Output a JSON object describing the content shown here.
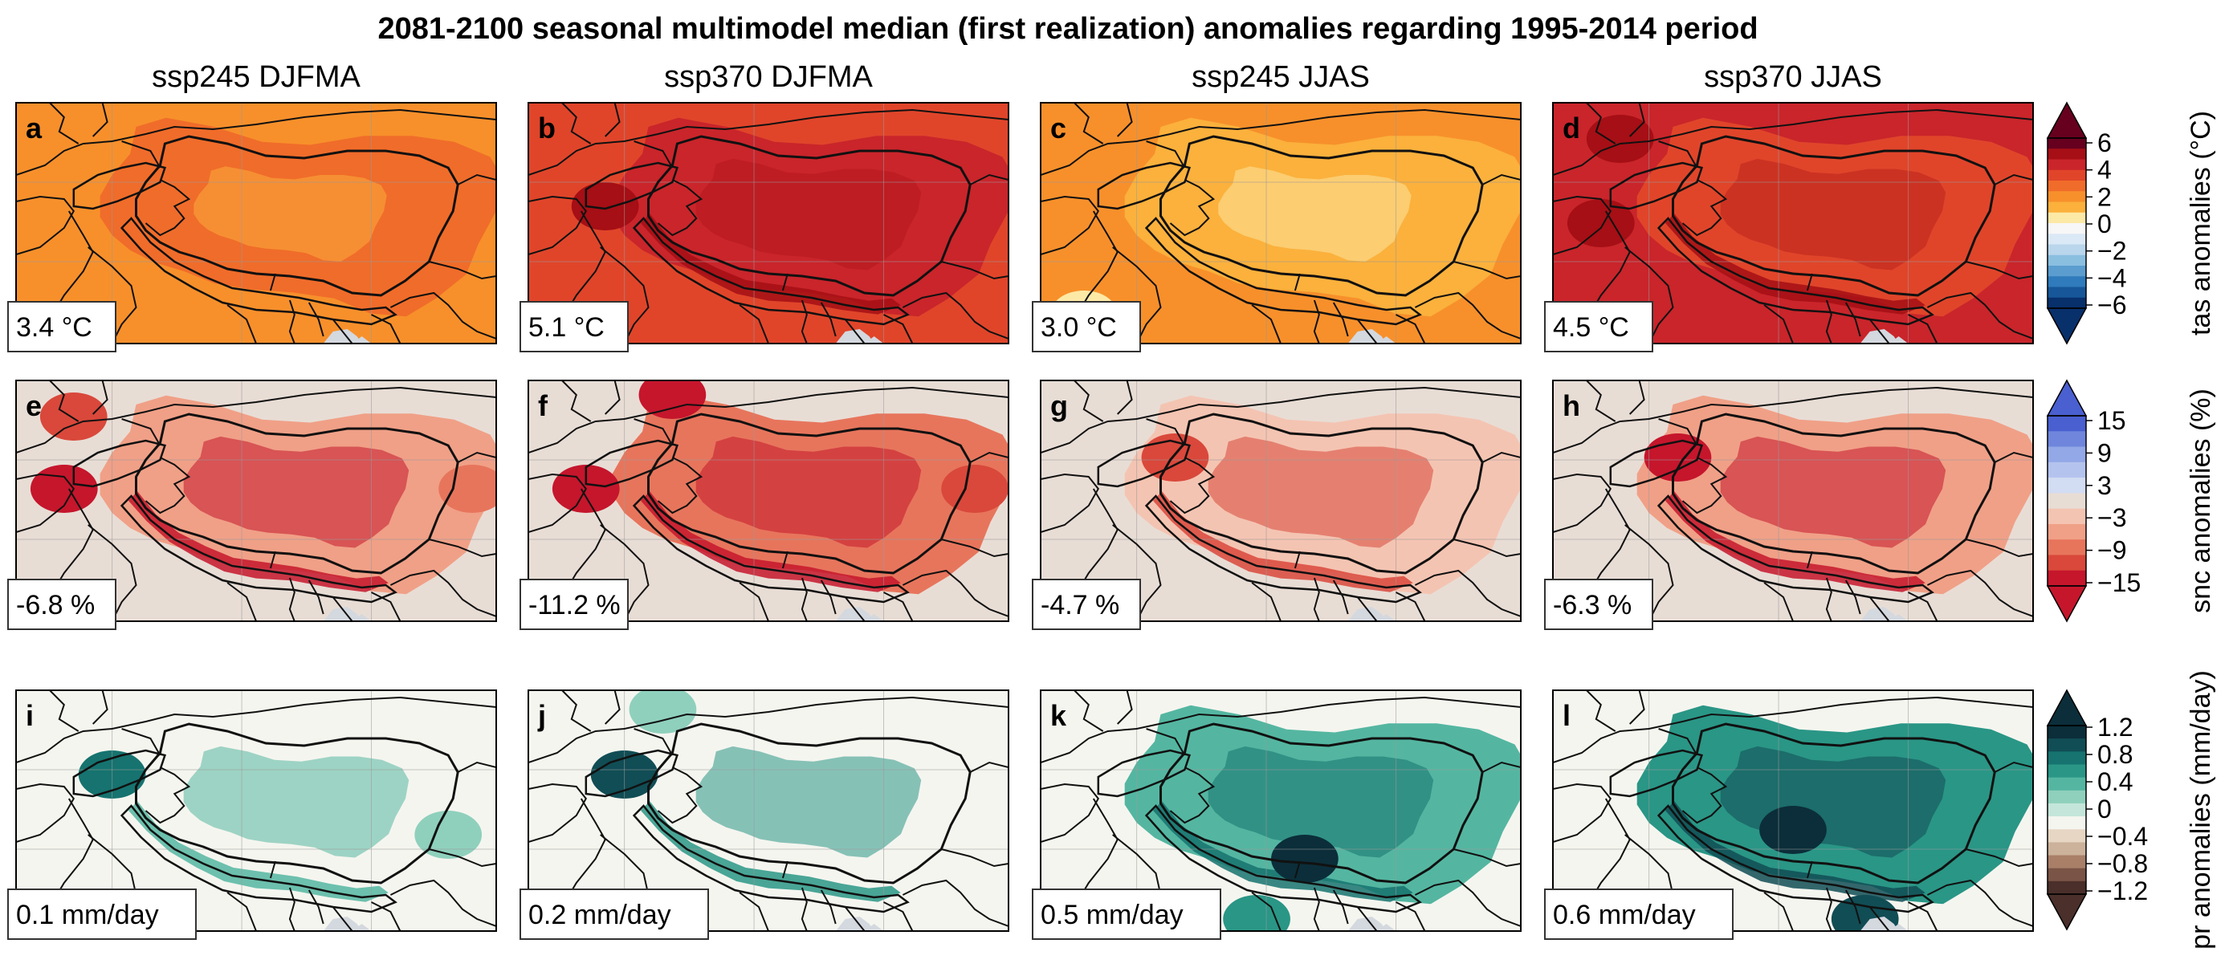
{
  "title": "2081-2100 seasonal multimodel median (first realization) anomalies regarding 1995-2014 period",
  "columns": [
    "ssp245 DJFMA",
    "ssp370 DJFMA",
    "ssp245 JJAS",
    "ssp370 JJAS"
  ],
  "rows": [
    {
      "variable": "tas",
      "colorbar_label": "tas anomalies (°C)",
      "ticks": [
        "6",
        "4",
        "2",
        "0",
        "−2",
        "−4",
        "−6"
      ],
      "palette_top_to_bottom": [
        "#67001f",
        "#a50f15",
        "#c9252b",
        "#e0452a",
        "#f06c2a",
        "#f7902b",
        "#fbb13c",
        "#fde9a6",
        "#f7f7f7",
        "#dbe9f6",
        "#b9d6ec",
        "#8bbfe0",
        "#5b9dcf",
        "#2f7bbc",
        "#175799",
        "#08306b"
      ],
      "panels": [
        {
          "letter": "a",
          "value": "3.4 °C",
          "base": "#f7902b",
          "anom": "#f06c2a",
          "minor": "#fbb13c",
          "minorLevel": -1,
          "spots": []
        },
        {
          "letter": "b",
          "value": "5.1 °C",
          "base": "#e0452a",
          "anom": "#c9252b",
          "minor": "#a50f15",
          "minorLevel": 1,
          "spots": [
            [
              0.16,
              0.43,
              "#a50f15"
            ]
          ]
        },
        {
          "letter": "c",
          "value": "3.0 °C",
          "base": "#f7902b",
          "anom": "#fbb13c",
          "minor": "#fde9a6",
          "minorLevel": -1,
          "spots": [
            [
              0.09,
              0.88,
              "#fde9a6"
            ]
          ]
        },
        {
          "letter": "d",
          "value": "4.5 °C",
          "base": "#c9252b",
          "anom": "#e0452a",
          "minor": "#a50f15",
          "minorLevel": 1,
          "spots": [
            [
              0.14,
              0.15,
              "#a50f15"
            ],
            [
              0.1,
              0.5,
              "#a50f15"
            ]
          ]
        }
      ]
    },
    {
      "variable": "snc",
      "colorbar_label": "snc anomalies (%)",
      "ticks": [
        "15",
        "9",
        "3",
        "−3",
        "−9",
        "−15"
      ],
      "palette_top_to_bottom": [
        "#4a5fd0",
        "#6f86dc",
        "#93a8e6",
        "#b4c3ee",
        "#d2dcf3",
        "#e8ddd5",
        "#f4c4b2",
        "#f0a087",
        "#e7755c",
        "#d9483b",
        "#c5162c"
      ],
      "panels": [
        {
          "letter": "e",
          "value": "-6.8 %",
          "base": "#e8ddd5",
          "anom": "#f0a087",
          "minor": "#c5162c",
          "minorLevel": 2,
          "spots": [
            [
              0.1,
              0.45,
              "#c5162c"
            ],
            [
              0.12,
              0.15,
              "#d9483b"
            ],
            [
              0.95,
              0.45,
              "#e7755c"
            ]
          ]
        },
        {
          "letter": "f",
          "value": "-11.2 %",
          "base": "#e8ddd5",
          "anom": "#e7755c",
          "minor": "#c5162c",
          "minorLevel": 2,
          "spots": [
            [
              0.12,
              0.45,
              "#c5162c"
            ],
            [
              0.3,
              0.06,
              "#c5162c"
            ],
            [
              0.93,
              0.45,
              "#d9483b"
            ]
          ]
        },
        {
          "letter": "g",
          "value": "-4.7 %",
          "base": "#e8ddd5",
          "anom": "#f4c4b2",
          "minor": "#d9483b",
          "minorLevel": 3,
          "spots": [
            [
              0.28,
              0.32,
              "#d9483b"
            ]
          ]
        },
        {
          "letter": "h",
          "value": "-6.3 %",
          "base": "#e8ddd5",
          "anom": "#f0a087",
          "minor": "#c5162c",
          "minorLevel": 3,
          "spots": [
            [
              0.26,
              0.32,
              "#c5162c"
            ]
          ]
        }
      ]
    },
    {
      "variable": "pr",
      "colorbar_label": "pr anomalies (mm/day)",
      "ticks": [
        "1.2",
        "0.8",
        "0.4",
        "0",
        "−0.4",
        "−0.8",
        "−1.2"
      ],
      "palette_top_to_bottom": [
        "#0b2e3a",
        "#114d55",
        "#16736f",
        "#2a9686",
        "#54b6a1",
        "#8fd0bd",
        "#c4e6da",
        "#f5f5ef",
        "#e6d6c3",
        "#ccb29a",
        "#a97f68",
        "#7a5446",
        "#4a2f2a"
      ],
      "panels": [
        {
          "letter": "i",
          "value": "0.1 mm/day",
          "base": "#f5f5ef",
          "anom": "#f5f5ef",
          "minor": "#54b6a1",
          "minorLevel": 4,
          "spots": [
            [
              0.2,
              0.35,
              "#16736f"
            ],
            [
              0.9,
              0.6,
              "#8fd0bd"
            ]
          ]
        },
        {
          "letter": "j",
          "value": "0.2 mm/day",
          "base": "#f5f5ef",
          "anom": "#f5f5ef",
          "minor": "#2a9686",
          "minorLevel": 4,
          "spots": [
            [
              0.2,
              0.35,
              "#114d55"
            ],
            [
              0.28,
              0.08,
              "#8fd0bd"
            ]
          ]
        },
        {
          "letter": "k",
          "value": "0.5 mm/day",
          "base": "#f5f5ef",
          "anom": "#54b6a1",
          "minor": "#16736f",
          "minorLevel": 5,
          "spots": [
            [
              0.55,
              0.7,
              "#0b2e3a"
            ],
            [
              0.45,
              0.95,
              "#2a9686"
            ]
          ]
        },
        {
          "letter": "l",
          "value": "0.6 mm/day",
          "base": "#f5f5ef",
          "anom": "#2a9686",
          "minor": "#114d55",
          "minorLevel": 5,
          "spots": [
            [
              0.5,
              0.58,
              "#0b2e3a"
            ],
            [
              0.65,
              0.95,
              "#114d55"
            ]
          ]
        }
      ]
    }
  ],
  "chart_data": {
    "type": "heatmap",
    "title": "2081-2100 seasonal multimodel median (first realization) anomalies regarding 1995-2014 period",
    "columns": [
      "ssp245 DJFMA",
      "ssp370 DJFMA",
      "ssp245 JJAS",
      "ssp370 JJAS"
    ],
    "panel_regional_means": [
      {
        "variable": "tas",
        "unit": "°C",
        "values": [
          3.4,
          5.1,
          3.0,
          4.5
        ]
      },
      {
        "variable": "snc",
        "unit": "%",
        "values": [
          -6.8,
          -11.2,
          -4.7,
          -6.3
        ]
      },
      {
        "variable": "pr",
        "unit": "mm/day",
        "values": [
          0.1,
          0.2,
          0.5,
          0.6
        ]
      }
    ],
    "colorbar_ranges": {
      "tas": [
        -6,
        6
      ],
      "snc": [
        -15,
        15
      ],
      "pr": [
        -1.2,
        1.2
      ]
    }
  }
}
